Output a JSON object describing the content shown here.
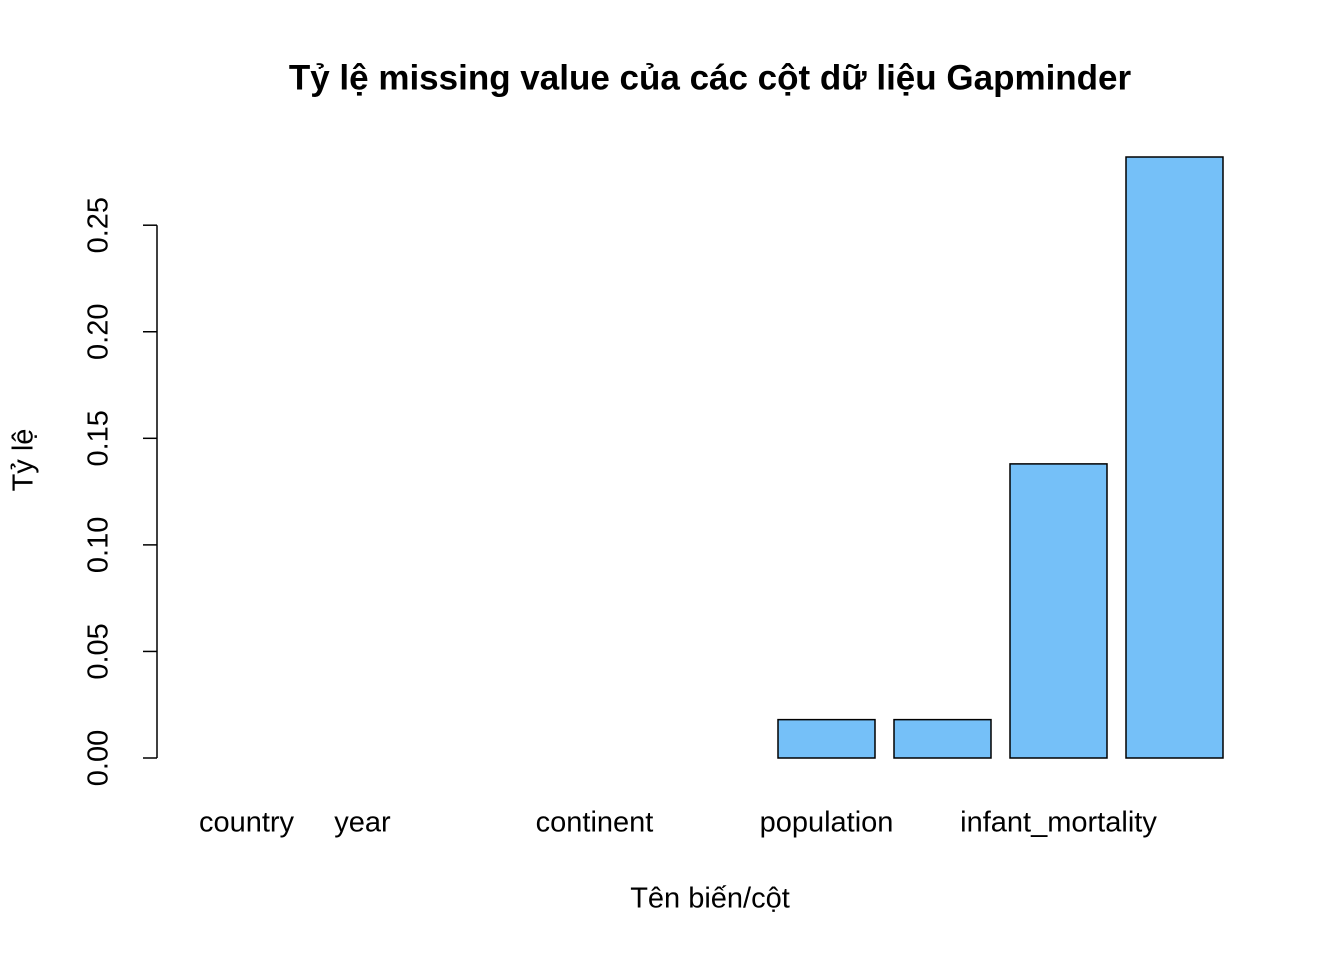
{
  "chart_data": {
    "type": "bar",
    "title": "Tỷ lệ missing value của các cột dữ liệu Gapminder",
    "x_label": "Tên biến/cột",
    "y_label": "Tỷ lệ",
    "categories": [
      "country",
      "year",
      null,
      "continent",
      null,
      "population",
      null,
      "infant_mortality",
      null
    ],
    "values": [
      0,
      0,
      0,
      0,
      0,
      0.018,
      0.018,
      0.138,
      0.282
    ],
    "color": "#75c0f8",
    "ylim": [
      0,
      0.282
    ],
    "yticks": [
      {
        "value": 0,
        "label": "0.00"
      },
      {
        "value": 0.05,
        "label": "0.05"
      },
      {
        "value": 0.1,
        "label": "0.10"
      },
      {
        "value": 0.15,
        "label": "0.15"
      },
      {
        "value": 0.2,
        "label": "0.20"
      },
      {
        "value": 0.25,
        "label": "0.25"
      }
    ]
  }
}
